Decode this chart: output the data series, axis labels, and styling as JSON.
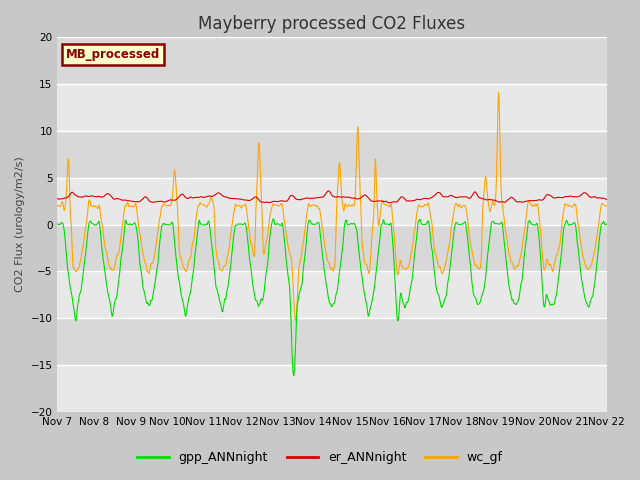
{
  "title": "Mayberry processed CO2 Fluxes",
  "ylabel": "CO2 Flux (urology/m2/s)",
  "ylim": [
    -20,
    20
  ],
  "yticks": [
    -20,
    -15,
    -10,
    -5,
    0,
    5,
    10,
    15,
    20
  ],
  "plot_bg_color": "#dcdcdc",
  "grid_color": "#f0f0f0",
  "title_fontsize": 12,
  "label_fontsize": 8,
  "tick_fontsize": 7.5,
  "legend_label": "MB_processed",
  "legend_box_color": "#ffffcc",
  "legend_border_color": "#8b0000",
  "line_gpp_color": "#00dd00",
  "line_er_color": "#dd0000",
  "line_wc_color": "#ffa500",
  "line_width": 0.8,
  "x_start_day": 7,
  "x_end_day": 22,
  "n_points": 1440,
  "xtick_days": [
    7,
    8,
    9,
    10,
    11,
    12,
    13,
    14,
    15,
    16,
    17,
    18,
    19,
    20,
    21,
    22
  ],
  "xtick_labels": [
    "Nov 7",
    "Nov 8",
    "Nov 9",
    "Nov 10",
    "Nov 11",
    "Nov 12",
    "Nov 13",
    "Nov 14",
    "Nov 15",
    "Nov 16",
    "Nov 17",
    "Nov 18",
    "Nov 19",
    "Nov 20",
    "Nov 21",
    "Nov 22"
  ],
  "legend_entries": [
    "gpp_ANNnight",
    "er_ANNnight",
    "wc_gf"
  ],
  "legend_colors": [
    "#00dd00",
    "#dd0000",
    "#ffa500"
  ]
}
